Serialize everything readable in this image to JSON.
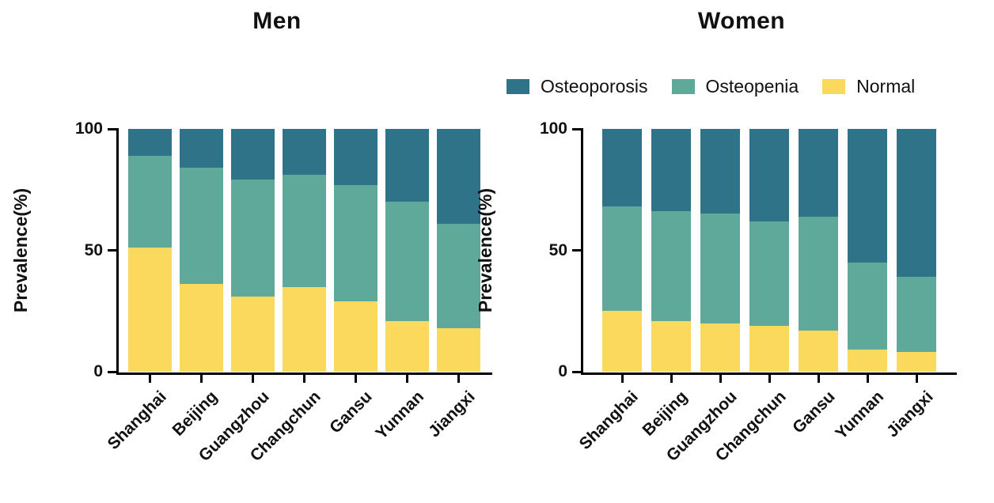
{
  "legend": {
    "items": [
      {
        "label": "Osteoporosis",
        "color": "#2f7389"
      },
      {
        "label": "Osteopenia",
        "color": "#5ea99a"
      },
      {
        "label": "Normal",
        "color": "#fbd95c"
      }
    ]
  },
  "chart_data": [
    {
      "type": "bar",
      "stacked": true,
      "title": "Men",
      "xlabel": "",
      "ylabel": "Prevalence(%)",
      "ylim": [
        0,
        100
      ],
      "yticks": [
        0,
        50,
        100
      ],
      "grid": false,
      "legend_position": "top-right-shared",
      "categories": [
        "Shanghai",
        "Beijing",
        "Guangzhou",
        "Changchun",
        "Gansu",
        "Yunnan",
        "Jiangxi"
      ],
      "series": [
        {
          "name": "Normal",
          "color": "#fbd95c",
          "values": [
            51,
            36,
            31,
            35,
            29,
            21,
            18
          ]
        },
        {
          "name": "Osteopenia",
          "color": "#5ea99a",
          "values": [
            38,
            48,
            48,
            46,
            48,
            49,
            43
          ]
        },
        {
          "name": "Osteoporosis",
          "color": "#2f7389",
          "values": [
            11,
            16,
            21,
            19,
            23,
            30,
            39
          ]
        }
      ]
    },
    {
      "type": "bar",
      "stacked": true,
      "title": "Women",
      "xlabel": "",
      "ylabel": "Prevalence(%)",
      "ylim": [
        0,
        100
      ],
      "yticks": [
        0,
        50,
        100
      ],
      "grid": false,
      "legend_position": "top-right-shared",
      "categories": [
        "Shanghai",
        "Beijing",
        "Guangzhou",
        "Changchun",
        "Gansu",
        "Yunnan",
        "Jiangxi"
      ],
      "series": [
        {
          "name": "Normal",
          "color": "#fbd95c",
          "values": [
            25,
            21,
            20,
            19,
            17,
            9,
            8
          ]
        },
        {
          "name": "Osteopenia",
          "color": "#5ea99a",
          "values": [
            43,
            45,
            45,
            43,
            47,
            36,
            31
          ]
        },
        {
          "name": "Osteoporosis",
          "color": "#2f7389",
          "values": [
            32,
            34,
            35,
            38,
            36,
            55,
            61
          ]
        }
      ]
    }
  ]
}
